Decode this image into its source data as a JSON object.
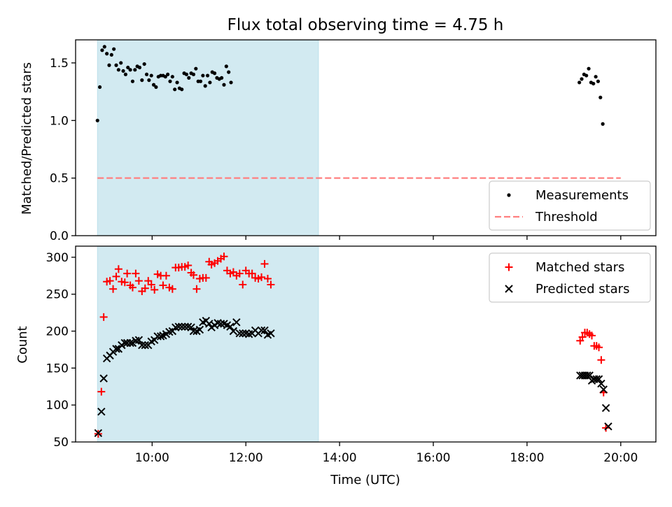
{
  "figure": {
    "title": "Flux total observing time = 4.75 h",
    "xlabel": "Time (UTC)"
  },
  "chart_data": [
    {
      "type": "scatter",
      "ylabel": "Matched/Predicted stars",
      "xlim": [
        "08:22",
        "20:45"
      ],
      "ylim": [
        0,
        1.7
      ],
      "yticks": [
        0.0,
        0.5,
        1.0,
        1.5
      ],
      "ytick_labels": [
        "0.0",
        "0.5",
        "1.0",
        "1.5"
      ],
      "shaded_region": {
        "start": "08:50",
        "end": "13:33",
        "color": "#add8e6"
      },
      "legend": {
        "location": "lower right",
        "entries": [
          "Measurements",
          "Threshold"
        ]
      },
      "threshold": {
        "name": "Threshold",
        "value": 0.5,
        "x_start": "08:50",
        "x_end": "20:00",
        "color": "#ff7f7f",
        "style": "dashed"
      },
      "series": [
        {
          "name": "Measurements",
          "marker": "dot",
          "color": "#000000",
          "points": [
            [
              "08:50",
              1.0
            ],
            [
              "08:53",
              1.29
            ],
            [
              "08:56",
              1.61
            ],
            [
              "08:59",
              1.64
            ],
            [
              "09:02",
              1.58
            ],
            [
              "09:05",
              1.48
            ],
            [
              "09:08",
              1.57
            ],
            [
              "09:11",
              1.62
            ],
            [
              "09:14",
              1.48
            ],
            [
              "09:17",
              1.44
            ],
            [
              "09:20",
              1.5
            ],
            [
              "09:23",
              1.43
            ],
            [
              "09:26",
              1.4
            ],
            [
              "09:29",
              1.46
            ],
            [
              "09:32",
              1.44
            ],
            [
              "09:35",
              1.34
            ],
            [
              "09:38",
              1.44
            ],
            [
              "09:41",
              1.47
            ],
            [
              "09:44",
              1.46
            ],
            [
              "09:47",
              1.35
            ],
            [
              "09:50",
              1.49
            ],
            [
              "09:53",
              1.4
            ],
            [
              "09:56",
              1.35
            ],
            [
              "09:59",
              1.39
            ],
            [
              "10:02",
              1.31
            ],
            [
              "10:05",
              1.29
            ],
            [
              "10:08",
              1.38
            ],
            [
              "10:11",
              1.39
            ],
            [
              "10:14",
              1.39
            ],
            [
              "10:17",
              1.38
            ],
            [
              "10:20",
              1.4
            ],
            [
              "10:23",
              1.34
            ],
            [
              "10:26",
              1.38
            ],
            [
              "10:29",
              1.27
            ],
            [
              "10:32",
              1.33
            ],
            [
              "10:35",
              1.28
            ],
            [
              "10:38",
              1.27
            ],
            [
              "10:41",
              1.41
            ],
            [
              "10:44",
              1.4
            ],
            [
              "10:47",
              1.37
            ],
            [
              "10:50",
              1.41
            ],
            [
              "10:53",
              1.4
            ],
            [
              "10:56",
              1.45
            ],
            [
              "10:59",
              1.34
            ],
            [
              "11:02",
              1.34
            ],
            [
              "11:05",
              1.39
            ],
            [
              "11:08",
              1.3
            ],
            [
              "11:11",
              1.39
            ],
            [
              "11:14",
              1.33
            ],
            [
              "11:17",
              1.42
            ],
            [
              "11:20",
              1.41
            ],
            [
              "11:23",
              1.37
            ],
            [
              "11:26",
              1.36
            ],
            [
              "11:29",
              1.37
            ],
            [
              "11:32",
              1.31
            ],
            [
              "11:35",
              1.47
            ],
            [
              "11:38",
              1.42
            ],
            [
              "11:41",
              1.33
            ],
            [
              "19:07",
              1.33
            ],
            [
              "19:10",
              1.36
            ],
            [
              "19:13",
              1.4
            ],
            [
              "19:16",
              1.39
            ],
            [
              "19:19",
              1.45
            ],
            [
              "19:22",
              1.33
            ],
            [
              "19:25",
              1.32
            ],
            [
              "19:28",
              1.38
            ],
            [
              "19:31",
              1.34
            ],
            [
              "19:34",
              1.2
            ],
            [
              "19:37",
              0.97
            ]
          ]
        }
      ]
    },
    {
      "type": "scatter",
      "ylabel": "Count",
      "xlim": [
        "08:22",
        "20:45"
      ],
      "ylim": [
        50,
        315
      ],
      "yticks": [
        50,
        100,
        150,
        200,
        250,
        300
      ],
      "ytick_labels": [
        "50",
        "100",
        "150",
        "200",
        "250",
        "300"
      ],
      "xtick_labels": [
        "10:00",
        "12:00",
        "14:00",
        "16:00",
        "18:00",
        "20:00"
      ],
      "shaded_region": {
        "start": "08:50",
        "end": "13:33",
        "color": "#add8e6"
      },
      "legend": {
        "location": "upper right",
        "entries": [
          "Matched stars",
          "Predicted stars"
        ]
      },
      "series": [
        {
          "name": "Matched stars",
          "marker": "plus",
          "color": "#ff0000",
          "points": [
            [
              "08:51",
              61
            ],
            [
              "08:55",
              118
            ],
            [
              "08:58",
              219
            ],
            [
              "09:02",
              267
            ],
            [
              "09:06",
              268
            ],
            [
              "09:10",
              257
            ],
            [
              "09:14",
              274
            ],
            [
              "09:17",
              284
            ],
            [
              "09:21",
              267
            ],
            [
              "09:25",
              266
            ],
            [
              "09:28",
              278
            ],
            [
              "09:32",
              262
            ],
            [
              "09:35",
              259
            ],
            [
              "09:39",
              278
            ],
            [
              "09:43",
              268
            ],
            [
              "09:47",
              254
            ],
            [
              "09:51",
              258
            ],
            [
              "09:55",
              268
            ],
            [
              "09:59",
              263
            ],
            [
              "10:03",
              256
            ],
            [
              "10:07",
              277
            ],
            [
              "10:11",
              275
            ],
            [
              "10:14",
              262
            ],
            [
              "10:18",
              275
            ],
            [
              "10:22",
              259
            ],
            [
              "10:26",
              257
            ],
            [
              "10:30",
              286
            ],
            [
              "10:34",
              286
            ],
            [
              "10:38",
              287
            ],
            [
              "10:42",
              287
            ],
            [
              "10:46",
              289
            ],
            [
              "10:50",
              279
            ],
            [
              "10:53",
              276
            ],
            [
              "10:57",
              257
            ],
            [
              "11:01",
              271
            ],
            [
              "11:05",
              272
            ],
            [
              "11:09",
              272
            ],
            [
              "11:13",
              294
            ],
            [
              "11:16",
              290
            ],
            [
              "11:20",
              292
            ],
            [
              "11:24",
              295
            ],
            [
              "11:28",
              298
            ],
            [
              "11:32",
              301
            ],
            [
              "11:36",
              282
            ],
            [
              "11:40",
              278
            ],
            [
              "11:44",
              280
            ],
            [
              "11:48",
              275
            ],
            [
              "11:52",
              278
            ],
            [
              "11:56",
              263
            ],
            [
              "12:00",
              282
            ],
            [
              "12:04",
              278
            ],
            [
              "12:08",
              278
            ],
            [
              "12:12",
              272
            ],
            [
              "12:16",
              271
            ],
            [
              "12:20",
              273
            ],
            [
              "12:24",
              291
            ],
            [
              "12:28",
              271
            ],
            [
              "12:32",
              263
            ],
            [
              "19:08",
              187
            ],
            [
              "19:11",
              192
            ],
            [
              "19:14",
              198
            ],
            [
              "19:17",
              198
            ],
            [
              "19:20",
              196
            ],
            [
              "19:23",
              194
            ],
            [
              "19:26",
              180
            ],
            [
              "19:29",
              180
            ],
            [
              "19:32",
              178
            ],
            [
              "19:35",
              161
            ],
            [
              "19:38",
              117
            ],
            [
              "19:41",
              69
            ]
          ]
        },
        {
          "name": "Predicted stars",
          "marker": "x",
          "color": "#000000",
          "points": [
            [
              "08:51",
              62
            ],
            [
              "08:55",
              91
            ],
            [
              "08:58",
              136
            ],
            [
              "09:02",
              163
            ],
            [
              "09:06",
              167
            ],
            [
              "09:10",
              172
            ],
            [
              "09:14",
              176
            ],
            [
              "09:17",
              176
            ],
            [
              "09:21",
              181
            ],
            [
              "09:25",
              184
            ],
            [
              "09:28",
              184
            ],
            [
              "09:32",
              184
            ],
            [
              "09:35",
              184
            ],
            [
              "09:39",
              187
            ],
            [
              "09:43",
              188
            ],
            [
              "09:47",
              181
            ],
            [
              "09:51",
              181
            ],
            [
              "09:55",
              181
            ],
            [
              "09:59",
              186
            ],
            [
              "10:03",
              188
            ],
            [
              "10:07",
              193
            ],
            [
              "10:11",
              193
            ],
            [
              "10:14",
              194
            ],
            [
              "10:18",
              196
            ],
            [
              "10:22",
              199
            ],
            [
              "10:26",
              200
            ],
            [
              "10:30",
              205
            ],
            [
              "10:34",
              206
            ],
            [
              "10:38",
              206
            ],
            [
              "10:42",
              206
            ],
            [
              "10:46",
              206
            ],
            [
              "10:50",
              205
            ],
            [
              "10:53",
              200
            ],
            [
              "10:57",
              200
            ],
            [
              "11:01",
              202
            ],
            [
              "11:05",
              212
            ],
            [
              "11:09",
              214
            ],
            [
              "11:13",
              210
            ],
            [
              "11:16",
              205
            ],
            [
              "11:20",
              208
            ],
            [
              "11:24",
              211
            ],
            [
              "11:28",
              210
            ],
            [
              "11:32",
              210
            ],
            [
              "11:36",
              208
            ],
            [
              "11:40",
              206
            ],
            [
              "11:44",
              200
            ],
            [
              "11:48",
              212
            ],
            [
              "11:52",
              197
            ],
            [
              "11:56",
              197
            ],
            [
              "12:00",
              197
            ],
            [
              "12:04",
              196
            ],
            [
              "12:08",
              197
            ],
            [
              "12:12",
              201
            ],
            [
              "12:16",
              197
            ],
            [
              "12:20",
              201
            ],
            [
              "12:24",
              201
            ],
            [
              "12:28",
              195
            ],
            [
              "12:32",
              197
            ],
            [
              "19:08",
              140
            ],
            [
              "19:11",
              140
            ],
            [
              "19:14",
              140
            ],
            [
              "19:17",
              140
            ],
            [
              "19:20",
              140
            ],
            [
              "19:23",
              133
            ],
            [
              "19:26",
              135
            ],
            [
              "19:29",
              135
            ],
            [
              "19:32",
              135
            ],
            [
              "19:35",
              129
            ],
            [
              "19:38",
              121
            ],
            [
              "19:41",
              96
            ],
            [
              "19:44",
              71
            ]
          ]
        }
      ]
    }
  ]
}
